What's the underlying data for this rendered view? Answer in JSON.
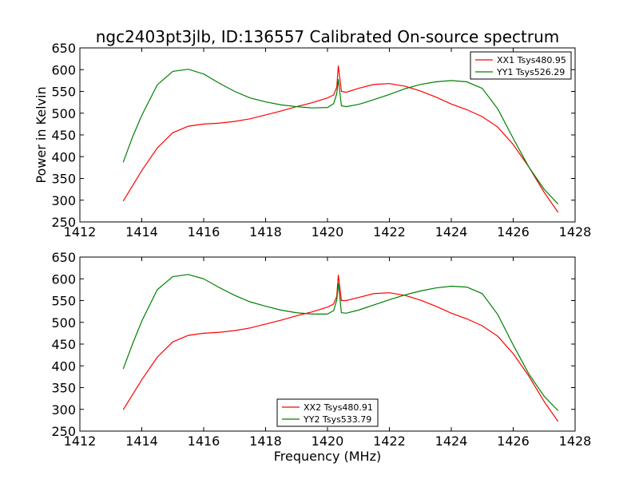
{
  "chart_data": {
    "title": "ngc2403pt3jlb, ID:136557 Calibrated On-source spectrum",
    "xlabel": "Frequency (MHz)",
    "panels": [
      {
        "type": "line",
        "ylabel": "Power in Kelvin",
        "xlabel": "",
        "xlim": [
          1412,
          1428
        ],
        "ylim": [
          250,
          650
        ],
        "xticks": [
          1412,
          1414,
          1416,
          1418,
          1420,
          1422,
          1424,
          1426,
          1428
        ],
        "yticks": [
          250,
          300,
          350,
          400,
          450,
          500,
          550,
          600,
          650
        ],
        "grid": false,
        "legend_position": "top-right",
        "series": [
          {
            "name": "XX1 Tsys480.95",
            "color": "#ff0000",
            "x": [
              1413.4,
              1414.0,
              1414.5,
              1415.0,
              1415.5,
              1416.0,
              1416.5,
              1417.0,
              1417.5,
              1418.0,
              1418.5,
              1419.0,
              1419.5,
              1420.0,
              1420.2,
              1420.3,
              1420.35,
              1420.45,
              1420.6,
              1421.0,
              1421.5,
              1422.0,
              1422.5,
              1423.0,
              1423.5,
              1424.0,
              1424.5,
              1425.0,
              1425.5,
              1426.0,
              1426.5,
              1427.0,
              1427.45
            ],
            "y": [
              298,
              368,
              420,
              455,
              470,
              475,
              477,
              481,
              487,
              496,
              505,
              515,
              524,
              535,
              542,
              560,
              609,
              550,
              548,
              557,
              566,
              568,
              562,
              551,
              537,
              521,
              508,
              492,
              468,
              428,
              377,
              318,
              272
            ]
          },
          {
            "name": "YY1 Tsys526.29",
            "color": "#008000",
            "x": [
              1413.4,
              1413.7,
              1414.0,
              1414.5,
              1415.0,
              1415.5,
              1416.0,
              1416.5,
              1417.0,
              1417.5,
              1418.0,
              1418.5,
              1419.0,
              1419.5,
              1420.0,
              1420.2,
              1420.3,
              1420.35,
              1420.45,
              1420.6,
              1421.0,
              1421.5,
              1422.0,
              1422.5,
              1423.0,
              1423.5,
              1424.0,
              1424.5,
              1425.0,
              1425.5,
              1426.0,
              1426.5,
              1427.0,
              1427.45
            ],
            "y": [
              387,
              445,
              495,
              565,
              596,
              601,
              590,
              569,
              550,
              535,
              526,
              519,
              515,
              512,
              513,
              522,
              545,
              578,
              517,
              515,
              520,
              531,
              543,
              556,
              566,
              572,
              575,
              572,
              557,
              510,
              442,
              377,
              325,
              291
            ]
          }
        ]
      },
      {
        "type": "line",
        "ylabel": "",
        "xlabel": "Frequency (MHz)",
        "xlim": [
          1412,
          1428
        ],
        "ylim": [
          250,
          650
        ],
        "xticks": [
          1412,
          1414,
          1416,
          1418,
          1420,
          1422,
          1424,
          1426,
          1428
        ],
        "yticks": [
          250,
          300,
          350,
          400,
          450,
          500,
          550,
          600,
          650
        ],
        "grid": false,
        "legend_position": "bottom-center",
        "series": [
          {
            "name": "XX2 Tsys480.91",
            "color": "#ff0000",
            "x": [
              1413.4,
              1414.0,
              1414.5,
              1415.0,
              1415.5,
              1416.0,
              1416.5,
              1417.0,
              1417.5,
              1418.0,
              1418.5,
              1419.0,
              1419.5,
              1420.0,
              1420.2,
              1420.3,
              1420.35,
              1420.45,
              1420.6,
              1421.0,
              1421.5,
              1422.0,
              1422.5,
              1423.0,
              1423.5,
              1424.0,
              1424.5,
              1425.0,
              1425.5,
              1426.0,
              1426.5,
              1427.0,
              1427.45
            ],
            "y": [
              299,
              368,
              420,
              455,
              470,
              475,
              477,
              481,
              487,
              496,
              505,
              515,
              524,
              535,
              542,
              560,
              609,
              550,
              550,
              557,
              566,
              568,
              562,
              551,
              537,
              521,
              508,
              492,
              468,
              428,
              377,
              318,
              272
            ]
          },
          {
            "name": "YY2 Tsys533.79",
            "color": "#008000",
            "x": [
              1413.4,
              1413.7,
              1414.0,
              1414.5,
              1415.0,
              1415.5,
              1416.0,
              1416.5,
              1417.0,
              1417.5,
              1418.0,
              1418.5,
              1419.0,
              1419.5,
              1420.0,
              1420.2,
              1420.3,
              1420.35,
              1420.45,
              1420.6,
              1421.0,
              1421.5,
              1422.0,
              1422.5,
              1423.0,
              1423.5,
              1424.0,
              1424.5,
              1425.0,
              1425.5,
              1426.0,
              1426.5,
              1427.0,
              1427.45
            ],
            "y": [
              393,
              450,
              503,
              575,
              605,
              610,
              600,
              580,
              562,
              547,
              537,
              528,
              522,
              519,
              519,
              527,
              551,
              590,
              522,
              521,
              528,
              540,
              552,
              563,
              572,
              579,
              583,
              581,
              566,
              518,
              448,
              382,
              330,
              297
            ]
          }
        ]
      }
    ]
  }
}
